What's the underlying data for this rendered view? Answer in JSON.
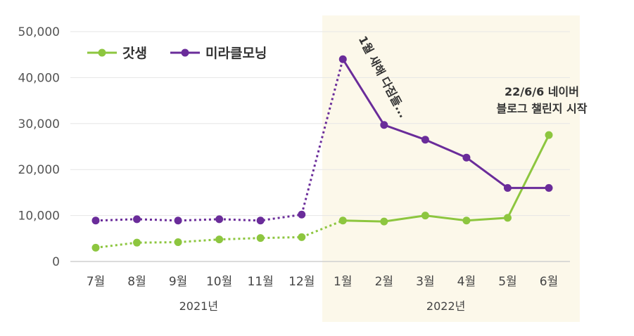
{
  "chart_data": {
    "type": "line",
    "categories": [
      "7월",
      "8월",
      "9월",
      "10월",
      "11월",
      "12월",
      "1월",
      "2월",
      "3월",
      "4월",
      "5월",
      "6월"
    ],
    "year_groups": [
      {
        "label": "2021년",
        "start": 0,
        "end": 5
      },
      {
        "label": "2022년",
        "start": 6,
        "end": 11
      }
    ],
    "yticks": [
      0,
      10000,
      20000,
      30000,
      40000,
      50000
    ],
    "ytick_labels": [
      "0",
      "10,000",
      "20,000",
      "30,000",
      "40,000",
      "50,000"
    ],
    "ylim": [
      0,
      50000
    ],
    "highlight_range": {
      "start": 6,
      "end": 11,
      "color": "#fcf8ea"
    },
    "dashed_until_index": 6,
    "series": [
      {
        "name": "갓생",
        "color": "#8dc63f",
        "values": [
          3000,
          4100,
          4200,
          4800,
          5100,
          5300,
          8900,
          8700,
          10000,
          8900,
          9500,
          27500
        ]
      },
      {
        "name": "미라클모닝",
        "color": "#6a2c9a",
        "values": [
          8900,
          9200,
          8900,
          9200,
          8900,
          10200,
          44000,
          29700,
          26500,
          22600,
          16000,
          16000
        ]
      }
    ],
    "annotations": [
      {
        "lines": [
          "1월 새해 다짐들..."
        ],
        "anchor_index": 6,
        "rotated": true
      },
      {
        "lines": [
          "22/6/6 네이버",
          "블로그 챌린지 시작"
        ],
        "anchor_index": 11,
        "rotated": false
      }
    ]
  }
}
